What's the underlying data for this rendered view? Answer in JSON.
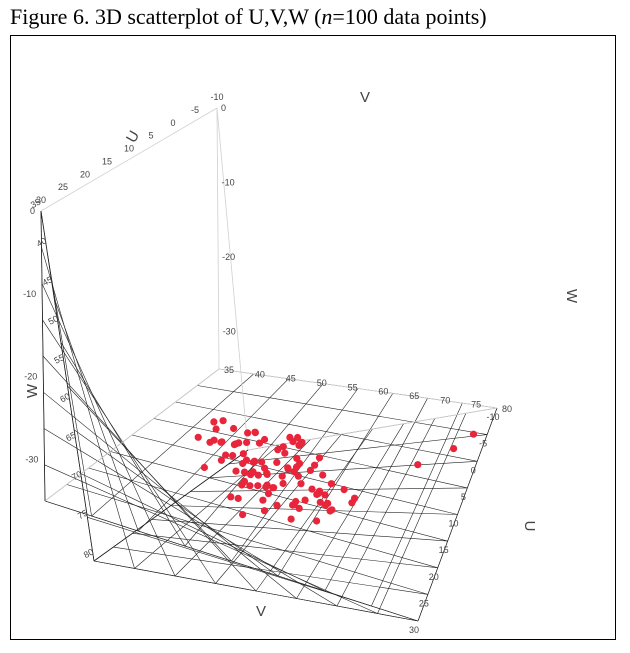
{
  "figure": {
    "title_prefix": "Figure 6. 3D scatterplot of U,V,W (",
    "title_n": "n",
    "title_suffix": "=100 data points)"
  },
  "chart_data": {
    "type": "scatter3d",
    "axes": {
      "U": {
        "label": "U",
        "range": [
          35,
          80
        ],
        "ticks": [
          35,
          40,
          45,
          50,
          55,
          60,
          65,
          70,
          75,
          80
        ]
      },
      "V": {
        "label": "V",
        "range": [
          -10,
          30
        ],
        "ticks": [
          30,
          25,
          20,
          15,
          10,
          5,
          0,
          -5,
          -10
        ]
      },
      "W": {
        "label": "W",
        "range": [
          -35,
          0
        ],
        "ticks": [
          0,
          -10,
          -20,
          -30
        ]
      }
    },
    "grid": true,
    "marker_color": "#e8253a",
    "points": [
      {
        "u": 70,
        "v": 14,
        "w": -16
      },
      {
        "u": 68,
        "v": 12,
        "w": -18
      },
      {
        "u": 72,
        "v": 10,
        "w": -20
      },
      {
        "u": 66,
        "v": 15,
        "w": -15
      },
      {
        "u": 64,
        "v": 13,
        "w": -17
      },
      {
        "u": 69,
        "v": 11,
        "w": -22
      },
      {
        "u": 71,
        "v": 16,
        "w": -19
      },
      {
        "u": 67,
        "v": 9,
        "w": -21
      },
      {
        "u": 65,
        "v": 14,
        "w": -13
      },
      {
        "u": 73,
        "v": 12,
        "w": -24
      },
      {
        "u": 62,
        "v": 17,
        "w": -14
      },
      {
        "u": 70,
        "v": 8,
        "w": -23
      },
      {
        "u": 68,
        "v": 18,
        "w": -18
      },
      {
        "u": 66,
        "v": 10,
        "w": -25
      },
      {
        "u": 74,
        "v": 15,
        "w": -20
      },
      {
        "u": 63,
        "v": 11,
        "w": -16
      },
      {
        "u": 69,
        "v": 13,
        "w": -27
      },
      {
        "u": 71,
        "v": 7,
        "w": -19
      },
      {
        "u": 65,
        "v": 16,
        "w": -22
      },
      {
        "u": 67,
        "v": 12,
        "w": -12
      },
      {
        "u": 72,
        "v": 14,
        "w": -26
      },
      {
        "u": 64,
        "v": 9,
        "w": -18
      },
      {
        "u": 70,
        "v": 17,
        "w": -24
      },
      {
        "u": 68,
        "v": 6,
        "w": -21
      },
      {
        "u": 61,
        "v": 13,
        "w": -15
      },
      {
        "u": 73,
        "v": 10,
        "w": -17
      },
      {
        "u": 66,
        "v": 19,
        "w": -20
      },
      {
        "u": 69,
        "v": 15,
        "w": -28
      },
      {
        "u": 67,
        "v": 8,
        "w": -14
      },
      {
        "u": 71,
        "v": 12,
        "w": -22
      },
      {
        "u": 62,
        "v": 14,
        "w": -19
      },
      {
        "u": 75,
        "v": 13,
        "w": -23
      },
      {
        "u": 65,
        "v": 11,
        "w": -26
      },
      {
        "u": 70,
        "v": 20,
        "w": -16
      },
      {
        "u": 68,
        "v": 7,
        "w": -25
      },
      {
        "u": 63,
        "v": 16,
        "w": -21
      },
      {
        "u": 72,
        "v": 9,
        "w": -18
      },
      {
        "u": 66,
        "v": 13,
        "w": -13
      },
      {
        "u": 74,
        "v": 11,
        "w": -27
      },
      {
        "u": 64,
        "v": 18,
        "w": -24
      },
      {
        "u": 69,
        "v": 5,
        "w": -20
      },
      {
        "u": 71,
        "v": 15,
        "w": -15
      },
      {
        "u": 67,
        "v": 14,
        "w": -29
      },
      {
        "u": 60,
        "v": 12,
        "w": -17
      },
      {
        "u": 73,
        "v": 16,
        "w": -22
      },
      {
        "u": 65,
        "v": 9,
        "w": -19
      },
      {
        "u": 70,
        "v": 13,
        "w": -11
      },
      {
        "u": 68,
        "v": 21,
        "w": -23
      },
      {
        "u": 62,
        "v": 10,
        "w": -25
      },
      {
        "u": 72,
        "v": 17,
        "w": -18
      },
      {
        "u": 66,
        "v": 6,
        "w": -21
      },
      {
        "u": 69,
        "v": 12,
        "w": -16
      },
      {
        "u": 75,
        "v": 14,
        "w": -24
      },
      {
        "u": 63,
        "v": 15,
        "w": -28
      },
      {
        "u": 71,
        "v": 10,
        "w": -14
      },
      {
        "u": 67,
        "v": 18,
        "w": -20
      },
      {
        "u": 64,
        "v": 12,
        "w": -26
      },
      {
        "u": 70,
        "v": 4,
        "w": -19
      },
      {
        "u": 68,
        "v": 16,
        "w": -22
      },
      {
        "u": 73,
        "v": 13,
        "w": -17
      },
      {
        "u": 65,
        "v": 20,
        "w": -15
      },
      {
        "u": 61,
        "v": 11,
        "w": -23
      },
      {
        "u": 72,
        "v": 15,
        "w": -27
      },
      {
        "u": 66,
        "v": 14,
        "w": -18
      },
      {
        "u": 69,
        "v": 9,
        "w": -12
      },
      {
        "u": 74,
        "v": 18,
        "w": -21
      },
      {
        "u": 62,
        "v": 16,
        "w": -20
      },
      {
        "u": 67,
        "v": 11,
        "w": -30
      },
      {
        "u": 71,
        "v": 19,
        "w": -16
      },
      {
        "u": 64,
        "v": 7,
        "w": -24
      },
      {
        "u": 70,
        "v": 15,
        "w": -19
      },
      {
        "u": 68,
        "v": 10,
        "w": -25
      },
      {
        "u": 63,
        "v": 13,
        "w": -14
      },
      {
        "u": 73,
        "v": 8,
        "w": -22
      },
      {
        "u": 66,
        "v": 17,
        "w": -28
      },
      {
        "u": 69,
        "v": 14,
        "w": -17
      },
      {
        "u": 75,
        "v": 10,
        "w": -20
      },
      {
        "u": 65,
        "v": 12,
        "w": -23
      },
      {
        "u": 71,
        "v": 22,
        "w": -18
      },
      {
        "u": 67,
        "v": 5,
        "w": -21
      },
      {
        "u": 62,
        "v": 15,
        "w": -26
      },
      {
        "u": 72,
        "v": 12,
        "w": -13
      },
      {
        "u": 64,
        "v": 14,
        "w": -19
      },
      {
        "u": 70,
        "v": 11,
        "w": -29
      },
      {
        "u": 68,
        "v": 19,
        "w": -24
      },
      {
        "u": 66,
        "v": 8,
        "w": -16
      },
      {
        "u": 73,
        "v": 14,
        "w": -22
      },
      {
        "u": 60,
        "v": 17,
        "w": -18
      },
      {
        "u": 69,
        "v": 16,
        "w": -20
      },
      {
        "u": 71,
        "v": 13,
        "w": -25
      },
      {
        "u": 67,
        "v": 10,
        "w": -15
      },
      {
        "u": 74,
        "v": 12,
        "w": -27
      },
      {
        "u": 63,
        "v": 18,
        "w": -21
      },
      {
        "u": 70,
        "v": 6,
        "w": -17
      },
      {
        "u": 65,
        "v": 15,
        "w": -23
      },
      {
        "u": 68,
        "v": 13,
        "w": -19
      },
      {
        "u": 76,
        "v": 2,
        "w": -31
      },
      {
        "u": 78,
        "v": -2,
        "w": -33
      },
      {
        "u": 79,
        "v": -5,
        "w": -34
      },
      {
        "u": 72,
        "v": 18,
        "w": -26
      }
    ]
  }
}
